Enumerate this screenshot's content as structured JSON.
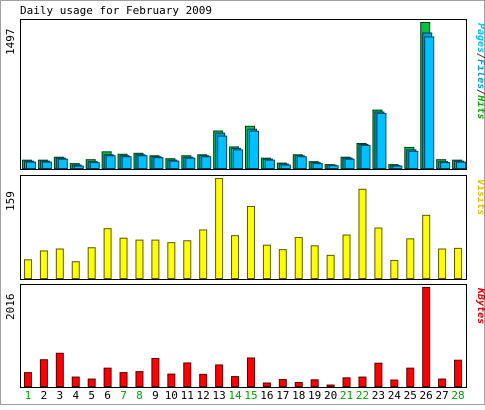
{
  "chart_data": {
    "type": "bar",
    "title": "Daily usage for February 2009",
    "categories": [
      "1",
      "2",
      "3",
      "4",
      "5",
      "6",
      "7",
      "8",
      "9",
      "10",
      "11",
      "12",
      "13",
      "14",
      "15",
      "16",
      "17",
      "18",
      "19",
      "20",
      "21",
      "22",
      "23",
      "24",
      "25",
      "26",
      "27",
      "28"
    ],
    "weekend_days": [
      "1",
      "7",
      "8",
      "14",
      "15",
      "21",
      "22",
      "28"
    ],
    "panels": [
      {
        "id": "hits-panel",
        "ymax_label": "1497",
        "legend": [
          "Pages",
          "/",
          "Files",
          "/",
          "Hits"
        ],
        "legend_colors": [
          "#00c0ff",
          "#404040",
          "#00a0e0",
          "#404040",
          "#00b000"
        ],
        "series": [
          {
            "name": "Hits",
            "color": "#00c040",
            "values": [
              95,
              95,
              125,
              60,
              100,
              180,
              155,
              165,
              140,
              110,
              140,
              150,
              392,
              230,
              440,
              115,
              65,
              150,
              80,
              50,
              125,
              265,
              605,
              50,
              225,
              1497,
              100,
              95
            ]
          },
          {
            "name": "Files",
            "color": "#00a0e0",
            "values": [
              85,
              85,
              115,
              45,
              80,
              150,
              140,
              150,
              130,
              95,
              125,
              140,
              370,
              215,
              410,
              105,
              55,
              140,
              70,
              45,
              115,
              255,
              585,
              40,
              200,
              1390,
              80,
              85
            ]
          },
          {
            "name": "Pages",
            "color": "#00c0ff",
            "values": [
              75,
              75,
              105,
              35,
              70,
              140,
              130,
              140,
              120,
              85,
              115,
              130,
              340,
              200,
              390,
              95,
              45,
              130,
              60,
              38,
              105,
              245,
              570,
              35,
              185,
              1350,
              70,
              75
            ]
          }
        ]
      },
      {
        "id": "visits-panel",
        "ymax_label": "159",
        "legend": [
          "Visits"
        ],
        "legend_colors": [
          "#e0c000"
        ],
        "series": [
          {
            "name": "Visits",
            "color": "#ffff00",
            "values": [
              31,
              45,
              48,
              28,
              50,
              80,
              65,
              62,
              62,
              58,
              61,
              78,
              159,
              69,
              115,
              54,
              47,
              66,
              53,
              38,
              70,
              142,
              81,
              30,
              64,
              101,
              48,
              49
            ]
          }
        ]
      },
      {
        "id": "kbytes-panel",
        "ymax_label": "2016",
        "legend": [
          "KBytes"
        ],
        "legend_colors": [
          "#e00000"
        ],
        "series": [
          {
            "name": "KBytes",
            "color": "#ff0000",
            "values": [
              300,
              560,
              690,
              210,
              170,
              390,
              300,
              320,
              585,
              270,
              495,
              265,
              455,
              220,
              595,
              90,
              160,
              100,
              155,
              50,
              195,
              210,
              490,
              150,
              390,
              2016,
              170,
              550
            ]
          }
        ]
      }
    ]
  }
}
